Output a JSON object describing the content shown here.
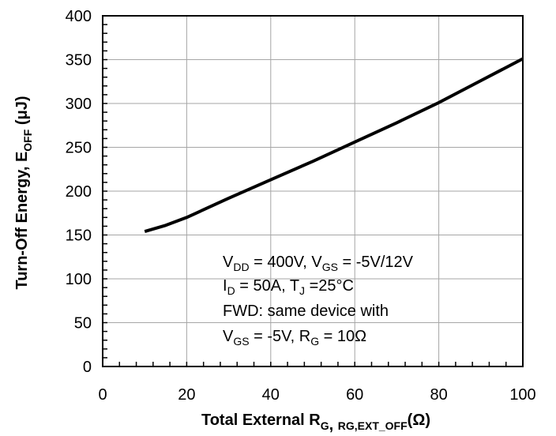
{
  "chart_data": {
    "type": "line",
    "xlabel": {
      "main": "Total External R",
      "sub1": "G",
      "sep": ", ",
      "sub2": "RG,EXT_OFF",
      "unit": "(Ω)"
    },
    "ylabel": {
      "main": "Turn-Off Energy, E",
      "sub": "OFF",
      "unit": " (μJ)"
    },
    "xlim": [
      0,
      100
    ],
    "ylim": [
      0,
      400
    ],
    "x_ticks": [
      0,
      20,
      40,
      60,
      80,
      100
    ],
    "y_ticks": [
      0,
      50,
      100,
      150,
      200,
      250,
      300,
      350,
      400
    ],
    "grid": true,
    "series": [
      {
        "x": [
          10,
          15,
          20,
          30,
          40,
          50,
          60,
          70,
          80,
          90,
          100
        ],
        "y": [
          154,
          161,
          170,
          192,
          213,
          234,
          256,
          278,
          301,
          326,
          351
        ]
      }
    ],
    "annotation": [
      [
        {
          "t": "V"
        },
        {
          "t": "DD",
          "sub": true
        },
        {
          "t": " = 400V, V"
        },
        {
          "t": "GS",
          "sub": true
        },
        {
          "t": " = -5V/12V"
        }
      ],
      [
        {
          "t": "I"
        },
        {
          "t": "D",
          "sub": true
        },
        {
          "t": " = 50A, T"
        },
        {
          "t": "J",
          "sub": true
        },
        {
          "t": " =25°C"
        }
      ],
      [
        {
          "t": "FWD: same device with"
        }
      ],
      [
        {
          "t": "V"
        },
        {
          "t": "GS",
          "sub": true
        },
        {
          "t": " = -5V, R"
        },
        {
          "t": "G",
          "sub": true
        },
        {
          "t": " = 10Ω"
        }
      ]
    ]
  }
}
